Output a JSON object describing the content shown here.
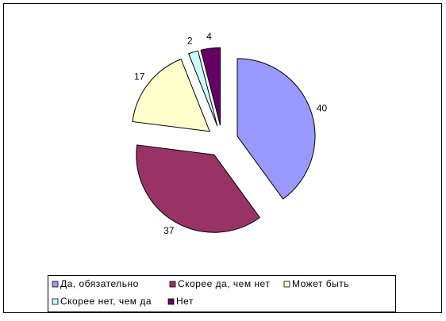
{
  "chart_data": {
    "type": "pie",
    "categories": [
      "Да, обязательно",
      "Скорее да, чем нет",
      "Может быть",
      "Скорее нет, чем да",
      "Нет"
    ],
    "values": [
      40,
      37,
      17,
      2,
      4
    ],
    "colors": [
      "#9999ff",
      "#993366",
      "#ffffcc",
      "#ccffff",
      "#660066"
    ],
    "legend": "bottom"
  }
}
